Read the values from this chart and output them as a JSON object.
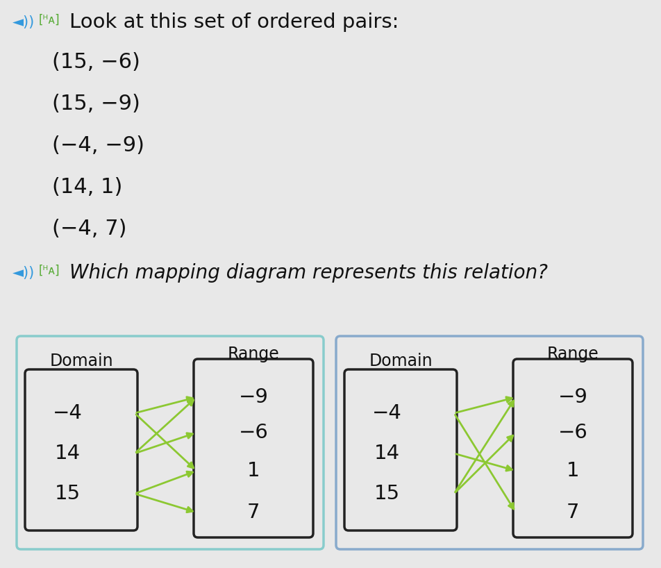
{
  "bg_color": "#e8e8e8",
  "box_bg": "#f0f0f0",
  "title_text": "Look at this set of ordered pairs:",
  "pairs_text": [
    "(15, −6)",
    "(15, −9)",
    "(−4, −9)",
    "(14, 1)",
    "(−4, 7)"
  ],
  "question_text": "Which mapping diagram represents this relation?",
  "domain_labels": [
    "−4",
    "14",
    "15"
  ],
  "range_labels": [
    "−9",
    "−6",
    "1",
    "7"
  ],
  "diagram1_arrows": [
    [
      "−4",
      "−9"
    ],
    [
      "−4",
      "1"
    ],
    [
      "14",
      "−9"
    ],
    [
      "14",
      "−6"
    ],
    [
      "15",
      "1"
    ],
    [
      "15",
      "7"
    ]
  ],
  "diagram2_arrows": [
    [
      "−4",
      "−9"
    ],
    [
      "−4",
      "7"
    ],
    [
      "14",
      "1"
    ],
    [
      "15",
      "−6"
    ],
    [
      "15",
      "−9"
    ]
  ],
  "arrow_color": "#8cc832",
  "box_edge_color": "#222222",
  "border1_color": "#88cccc",
  "border2_color": "#88aacc"
}
